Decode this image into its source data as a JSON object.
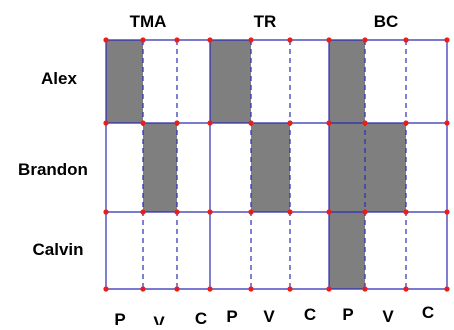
{
  "groups": [
    "TMA",
    "TR",
    "BC"
  ],
  "rows": [
    {
      "name": "Alex",
      "filled": [
        "P",
        "P",
        "P"
      ]
    },
    {
      "name": "Brandon",
      "filled": [
        "V",
        "V",
        "PV"
      ]
    },
    {
      "name": "Calvin",
      "filled": [
        "",
        "",
        "P"
      ]
    }
  ],
  "column_labels": [
    "P",
    "V",
    "C",
    "P",
    "V",
    "C",
    "P",
    "V",
    "C"
  ],
  "colors": {
    "line": "#2b2bb5",
    "fill": "#7f7f7f",
    "dot": "#e81e1e",
    "text": "#000000"
  }
}
